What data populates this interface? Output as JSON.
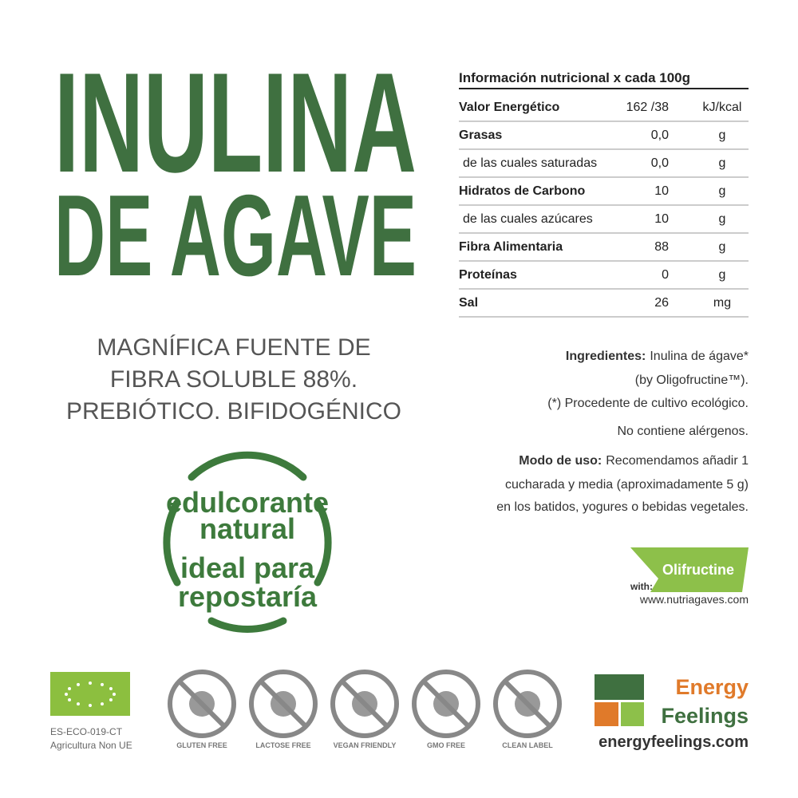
{
  "title": [
    "INULINA",
    "DE AGAVE"
  ],
  "tagline": [
    "MAGNÍFICA FUENTE DE",
    "FIBRA SOLUBLE 88%.",
    "PREBIÓTICO. BIFIDOGÉNICO"
  ],
  "badge": [
    "edulcorante",
    "natural",
    "ideal para",
    "repostaría"
  ],
  "nutrition": {
    "header": "Información nutricional x cada 100g",
    "rows": [
      [
        "Valor Energético",
        "162 /38",
        "kJ/kcal"
      ],
      [
        "Grasas",
        "0,0",
        "g"
      ],
      [
        "de las cuales saturadas",
        "0,0",
        "g"
      ],
      [
        "Hidratos de Carbono",
        "10",
        "g"
      ],
      [
        "de las cuales azúcares",
        "10",
        "g"
      ],
      [
        "Fibra Alimentaria",
        "88",
        "g"
      ],
      [
        "Proteínas",
        "0",
        "g"
      ],
      [
        "Sal",
        "26",
        "mg"
      ]
    ]
  },
  "ingredients": {
    "label": "Ingredientes:",
    "text": [
      "Inulina de ágave*",
      "(by Oligofructine™).",
      "(*) Procedente de cultivo ecológico."
    ]
  },
  "allergens": "No contiene alérgenos.",
  "usage": {
    "label": "Modo de uso:",
    "text": [
      "Recomendamos añadir 1",
      "cucharada y media (aproximadamente 5 g)",
      "en los batidos, yogures o bebidas vegetales."
    ]
  },
  "olifructine": {
    "brand": "Olifructine",
    "with": "with:",
    "url": "www.nutriagaves.com"
  },
  "eco": [
    "ES-ECO-019-CT",
    "Agricultura Non UE"
  ],
  "icons": [
    "GLUTEN FREE",
    "LACTOSE FREE",
    "VEGAN FRIENDLY",
    "GMO FREE",
    "CLEAN LABEL"
  ],
  "brand": {
    "name": [
      "Energy",
      "Feelings"
    ],
    "url": "energyfeelings.com"
  }
}
